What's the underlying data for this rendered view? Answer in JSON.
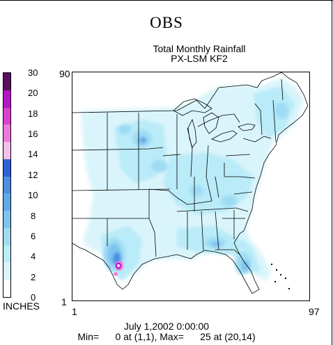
{
  "title": "OBS",
  "subtitle": "Total Monthly Rainfall",
  "subtitle2": "PX-LSM KF2",
  "legend": {
    "units": "INCHES",
    "levels": [
      "0",
      "2",
      "4",
      "6",
      "8",
      "10",
      "12",
      "14",
      "16",
      "18",
      "20",
      "30"
    ],
    "colors": [
      "#ffffff",
      "#d9f4fb",
      "#b9ebf8",
      "#9fdcf4",
      "#7fc3ef",
      "#61aaea",
      "#4a8fe4",
      "#2e60da",
      "#f2c0e8",
      "#ee79db",
      "#dd3fd0",
      "#b515c9",
      "#5a1060"
    ]
  },
  "axes": {
    "x_min": "1",
    "x_max": "97",
    "y_min": "1",
    "y_max": "90"
  },
  "footer": {
    "date": "July 1,2002 0:00:00",
    "stats": "Min=      0 at (1,1), Max=      25 at (20,14)"
  }
}
